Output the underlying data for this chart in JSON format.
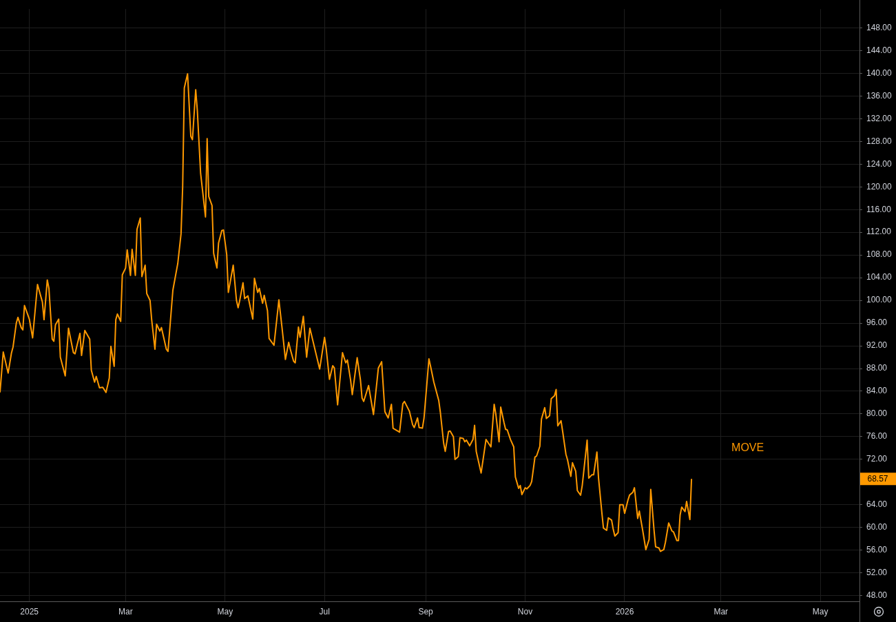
{
  "chart_data": {
    "type": "line",
    "legend": false,
    "grid": true,
    "marker": "none",
    "line_style": "solid",
    "xlim": [
      "2024-12-14",
      "2026-05-25"
    ],
    "xticks": [
      {
        "value": "2025-01-01",
        "label": "2025"
      },
      {
        "value": "2025-03-01",
        "label": "Mar"
      },
      {
        "value": "2025-05-01",
        "label": "May"
      },
      {
        "value": "2025-07-01",
        "label": "Jul"
      },
      {
        "value": "2025-09-01",
        "label": "Sep"
      },
      {
        "value": "2025-11-01",
        "label": "Nov"
      },
      {
        "value": "2026-01-01",
        "label": "2026"
      },
      {
        "value": "2026-03-01",
        "label": "Mar"
      },
      {
        "value": "2026-05-01",
        "label": "May"
      }
    ],
    "ylim": [
      47,
      151.3
    ],
    "yticks": [
      {
        "value": 48,
        "label": "48.00"
      },
      {
        "value": 52,
        "label": "52.00"
      },
      {
        "value": 56,
        "label": "56.00"
      },
      {
        "value": 60,
        "label": "60.00"
      },
      {
        "value": 64,
        "label": "64.00"
      },
      {
        "value": 72,
        "label": "72.00"
      },
      {
        "value": 76,
        "label": "76.00"
      },
      {
        "value": 80,
        "label": "80.00"
      },
      {
        "value": 84,
        "label": "84.00"
      },
      {
        "value": 88,
        "label": "88.00"
      },
      {
        "value": 92,
        "label": "92.00"
      },
      {
        "value": 96,
        "label": "96.00"
      },
      {
        "value": 100,
        "label": "100.00"
      },
      {
        "value": 104,
        "label": "104.00"
      },
      {
        "value": 108,
        "label": "108.00"
      },
      {
        "value": 112,
        "label": "112.00"
      },
      {
        "value": 116,
        "label": "116.00"
      },
      {
        "value": 120,
        "label": "120.00"
      },
      {
        "value": 124,
        "label": "124.00"
      },
      {
        "value": 128,
        "label": "128.00"
      },
      {
        "value": 132,
        "label": "132.00"
      },
      {
        "value": 136,
        "label": "136.00"
      },
      {
        "value": 140,
        "label": "140.00"
      },
      {
        "value": 144,
        "label": "144.00"
      },
      {
        "value": 148,
        "label": "148.00"
      }
    ],
    "annotations": [
      "68.57"
    ],
    "series": [
      {
        "name": "MOVE",
        "color": "#ff9900",
        "x": [
          "2024-12-14",
          "2024-12-16",
          "2024-12-19",
          "2024-12-21",
          "2024-12-22",
          "2024-12-24",
          "2024-12-25",
          "2024-12-27",
          "2024-12-28",
          "2024-12-29",
          "2025-01-01",
          "2025-01-03",
          "2025-01-06",
          "2025-01-09",
          "2025-01-10",
          "2025-01-12",
          "2025-01-13",
          "2025-01-15",
          "2025-01-16",
          "2025-01-17",
          "2025-01-19",
          "2025-01-20",
          "2025-01-23",
          "2025-01-25",
          "2025-01-28",
          "2025-01-29",
          "2025-02-01",
          "2025-02-02",
          "2025-02-04",
          "2025-02-07",
          "2025-02-08",
          "2025-02-10",
          "2025-02-11",
          "2025-02-13",
          "2025-02-15",
          "2025-02-17",
          "2025-02-19",
          "2025-02-20",
          "2025-02-22",
          "2025-02-23",
          "2025-02-24",
          "2025-02-26",
          "2025-02-27",
          "2025-03-01",
          "2025-03-02",
          "2025-03-04",
          "2025-03-05",
          "2025-03-07",
          "2025-03-08",
          "2025-03-10",
          "2025-03-11",
          "2025-03-13",
          "2025-03-14",
          "2025-03-16",
          "2025-03-17",
          "2025-03-19",
          "2025-03-20",
          "2025-03-22",
          "2025-03-23",
          "2025-03-26",
          "2025-03-27",
          "2025-03-30",
          "2025-04-02",
          "2025-04-04",
          "2025-04-05",
          "2025-04-06",
          "2025-04-08",
          "2025-04-10",
          "2025-04-11",
          "2025-04-13",
          "2025-04-14",
          "2025-04-16",
          "2025-04-19",
          "2025-04-20",
          "2025-04-21",
          "2025-04-23",
          "2025-04-24",
          "2025-04-26",
          "2025-04-27",
          "2025-04-29",
          "2025-04-30",
          "2025-05-02",
          "2025-05-03",
          "2025-05-06",
          "2025-05-08",
          "2025-05-09",
          "2025-05-10",
          "2025-05-12",
          "2025-05-13",
          "2025-05-15",
          "2025-05-18",
          "2025-05-19",
          "2025-05-21",
          "2025-05-22",
          "2025-05-24",
          "2025-05-25",
          "2025-05-27",
          "2025-05-28",
          "2025-05-31",
          "2025-06-03",
          "2025-06-05",
          "2025-06-07",
          "2025-06-09",
          "2025-06-10",
          "2025-06-12",
          "2025-06-13",
          "2025-06-15",
          "2025-06-16",
          "2025-06-18",
          "2025-06-20",
          "2025-06-22",
          "2025-06-28",
          "2025-07-01",
          "2025-07-02",
          "2025-07-04",
          "2025-07-06",
          "2025-07-07",
          "2025-07-09",
          "2025-07-12",
          "2025-07-14",
          "2025-07-15",
          "2025-07-17",
          "2025-07-18",
          "2025-07-21",
          "2025-07-23",
          "2025-07-24",
          "2025-07-25",
          "2025-07-28",
          "2025-07-31",
          "2025-08-03",
          "2025-08-05",
          "2025-08-07",
          "2025-08-09",
          "2025-08-11",
          "2025-08-12",
          "2025-08-13",
          "2025-08-16",
          "2025-08-18",
          "2025-08-19",
          "2025-08-22",
          "2025-08-24",
          "2025-08-25",
          "2025-08-27",
          "2025-08-28",
          "2025-08-30",
          "2025-08-31",
          "2025-09-03",
          "2025-09-04",
          "2025-09-06",
          "2025-09-09",
          "2025-09-10",
          "2025-09-12",
          "2025-09-13",
          "2025-09-15",
          "2025-09-16",
          "2025-09-18",
          "2025-09-19",
          "2025-09-21",
          "2025-09-22",
          "2025-09-24",
          "2025-09-25",
          "2025-09-26",
          "2025-09-28",
          "2025-09-30",
          "2025-10-01",
          "2025-10-02",
          "2025-10-05",
          "2025-10-08",
          "2025-10-11",
          "2025-10-13",
          "2025-10-14",
          "2025-10-16",
          "2025-10-17",
          "2025-10-19",
          "2025-10-20",
          "2025-10-21",
          "2025-10-23",
          "2025-10-25",
          "2025-10-26",
          "2025-10-28",
          "2025-10-29",
          "2025-10-30",
          "2025-11-01",
          "2025-11-02",
          "2025-11-04",
          "2025-11-05",
          "2025-11-07",
          "2025-11-08",
          "2025-11-10",
          "2025-11-11",
          "2025-11-13",
          "2025-11-14",
          "2025-11-16",
          "2025-11-17",
          "2025-11-19",
          "2025-11-20",
          "2025-11-21",
          "2025-11-23",
          "2025-11-24",
          "2025-11-26",
          "2025-11-27",
          "2025-11-29",
          "2025-11-30",
          "2025-12-02",
          "2025-12-03",
          "2025-12-05",
          "2025-12-06",
          "2025-12-09",
          "2025-12-10",
          "2025-12-12",
          "2025-12-13",
          "2025-12-15",
          "2025-12-16",
          "2025-12-18",
          "2025-12-19",
          "2025-12-21",
          "2025-12-22",
          "2025-12-24",
          "2025-12-25",
          "2025-12-26",
          "2025-12-28",
          "2025-12-29",
          "2025-12-31",
          "2026-01-01",
          "2026-01-03",
          "2026-01-04",
          "2026-01-06",
          "2026-01-07",
          "2026-01-09",
          "2026-01-10",
          "2026-01-12",
          "2026-01-14",
          "2026-01-16",
          "2026-01-17",
          "2026-01-19",
          "2026-01-20",
          "2026-01-22",
          "2026-01-23",
          "2026-01-25",
          "2026-01-26",
          "2026-01-28",
          "2026-01-30",
          "2026-01-31",
          "2026-02-02",
          "2026-02-03",
          "2026-02-04",
          "2026-02-05",
          "2026-02-07",
          "2026-02-08",
          "2026-02-10",
          "2026-02-11"
        ],
        "values": [
          83.8,
          90.9,
          87.2,
          90.7,
          91.8,
          96.0,
          97.0,
          95.2,
          94.8,
          99.1,
          96.7,
          93.4,
          102.8,
          99.7,
          96.6,
          103.6,
          102.1,
          93.2,
          92.8,
          95.7,
          96.7,
          90.0,
          86.7,
          95.1,
          90.8,
          90.6,
          94.2,
          90.3,
          94.7,
          93.2,
          87.7,
          85.6,
          86.6,
          84.6,
          84.7,
          83.8,
          86.3,
          91.9,
          88.4,
          96.6,
          97.6,
          96.3,
          104.5,
          105.7,
          108.9,
          104.4,
          109.0,
          104.4,
          112.5,
          114.5,
          104.2,
          106.2,
          101.2,
          100.0,
          96.6,
          91.4,
          95.8,
          94.6,
          95.2,
          91.4,
          91.0,
          101.8,
          106.5,
          111.7,
          120.0,
          137.4,
          139.9,
          128.9,
          128.3,
          137.1,
          133.4,
          122.4,
          114.7,
          128.5,
          118.3,
          116.7,
          108.3,
          105.7,
          110.1,
          112.3,
          112.4,
          108.1,
          101.4,
          106.2,
          100.0,
          98.7,
          100.0,
          103.1,
          100.3,
          100.8,
          96.7,
          103.9,
          101.4,
          102.1,
          99.5,
          100.9,
          98.2,
          93.3,
          92.1,
          100.1,
          95.0,
          89.6,
          92.6,
          91.4,
          89.3,
          89.0,
          95.3,
          93.5,
          97.2,
          90.0,
          95.1,
          87.9,
          93.5,
          91.5,
          86.1,
          88.5,
          88.1,
          81.6,
          90.8,
          89.0,
          89.5,
          85.9,
          83.4,
          89.9,
          86.0,
          82.8,
          82.2,
          85.0,
          79.9,
          88.1,
          89.2,
          80.4,
          79.3,
          81.7,
          77.5,
          77.3,
          76.8,
          81.8,
          82.2,
          80.5,
          78.1,
          77.6,
          79.3,
          77.6,
          77.5,
          79.3,
          89.7,
          88.4,
          85.6,
          82.4,
          80.3,
          74.9,
          73.4,
          76.9,
          77.0,
          76.0,
          72.0,
          72.5,
          75.8,
          75.7,
          75.1,
          75.4,
          74.4,
          75.5,
          78.0,
          73.4,
          69.6,
          75.5,
          74.2,
          81.7,
          80.0,
          75.1,
          81.2,
          78.5,
          77.3,
          77.2,
          75.5,
          74.2,
          68.9,
          66.9,
          67.4,
          65.8,
          67.0,
          66.8,
          67.4,
          68.1,
          72.4,
          72.6,
          74.3,
          79.1,
          81.1,
          79.2,
          79.7,
          82.7,
          83.2,
          84.3,
          77.9,
          78.8,
          76.9,
          72.9,
          71.9,
          69.0,
          71.4,
          69.9,
          66.5,
          65.7,
          67.4,
          75.4,
          68.7,
          69.3,
          69.3,
          73.3,
          68.7,
          62.7,
          59.9,
          59.5,
          61.7,
          61.3,
          59.7,
          58.5,
          59.1,
          64.0,
          64.0,
          62.5,
          64.8,
          65.7,
          66.2,
          67.0,
          61.6,
          62.9,
          59.6,
          56.1,
          57.9,
          66.7,
          59.6,
          56.6,
          56.4,
          55.8,
          56.1,
          57.4,
          60.8,
          59.4,
          59.2,
          57.7,
          57.7,
          62.2,
          63.6,
          62.8,
          64.6,
          61.4,
          68.57
        ]
      }
    ]
  }
}
